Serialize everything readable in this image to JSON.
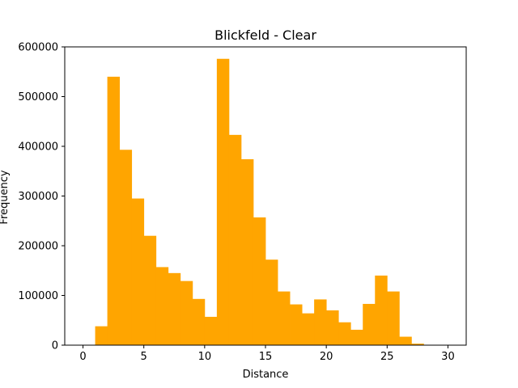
{
  "chart_data": {
    "type": "bar",
    "title": "Blickfeld - Clear",
    "xlabel": "Distance",
    "ylabel": "Frequency",
    "xlim": [
      -1.5,
      31.5
    ],
    "ylim": [
      0,
      600000
    ],
    "x_ticks": [
      0,
      5,
      10,
      15,
      20,
      25,
      30
    ],
    "y_ticks": [
      0,
      100000,
      200000,
      300000,
      400000,
      500000,
      600000
    ],
    "bar_color": "#FFA500",
    "grid": false,
    "legend": "none",
    "bins": [
      {
        "start": 1,
        "end": 2,
        "value": 38000
      },
      {
        "start": 2,
        "end": 3,
        "value": 540000
      },
      {
        "start": 3,
        "end": 4,
        "value": 393000
      },
      {
        "start": 4,
        "end": 5,
        "value": 295000
      },
      {
        "start": 5,
        "end": 6,
        "value": 220000
      },
      {
        "start": 6,
        "end": 7,
        "value": 157000
      },
      {
        "start": 7,
        "end": 8,
        "value": 145000
      },
      {
        "start": 8,
        "end": 9,
        "value": 129000
      },
      {
        "start": 9,
        "end": 10,
        "value": 93000
      },
      {
        "start": 10,
        "end": 11,
        "value": 57000
      },
      {
        "start": 11,
        "end": 12,
        "value": 576000
      },
      {
        "start": 12,
        "end": 13,
        "value": 423000
      },
      {
        "start": 13,
        "end": 14,
        "value": 374000
      },
      {
        "start": 14,
        "end": 15,
        "value": 257000
      },
      {
        "start": 15,
        "end": 16,
        "value": 172000
      },
      {
        "start": 16,
        "end": 17,
        "value": 108000
      },
      {
        "start": 17,
        "end": 18,
        "value": 82000
      },
      {
        "start": 18,
        "end": 19,
        "value": 64000
      },
      {
        "start": 19,
        "end": 20,
        "value": 92000
      },
      {
        "start": 20,
        "end": 21,
        "value": 70000
      },
      {
        "start": 21,
        "end": 22,
        "value": 46000
      },
      {
        "start": 22,
        "end": 23,
        "value": 31000
      },
      {
        "start": 23,
        "end": 24,
        "value": 83000
      },
      {
        "start": 24,
        "end": 25,
        "value": 140000
      },
      {
        "start": 25,
        "end": 26,
        "value": 108000
      },
      {
        "start": 26,
        "end": 27,
        "value": 17000
      },
      {
        "start": 27,
        "end": 28,
        "value": 3000
      },
      {
        "start": 28,
        "end": 29,
        "value": 0
      },
      {
        "start": 29,
        "end": 30,
        "value": 0
      }
    ]
  }
}
